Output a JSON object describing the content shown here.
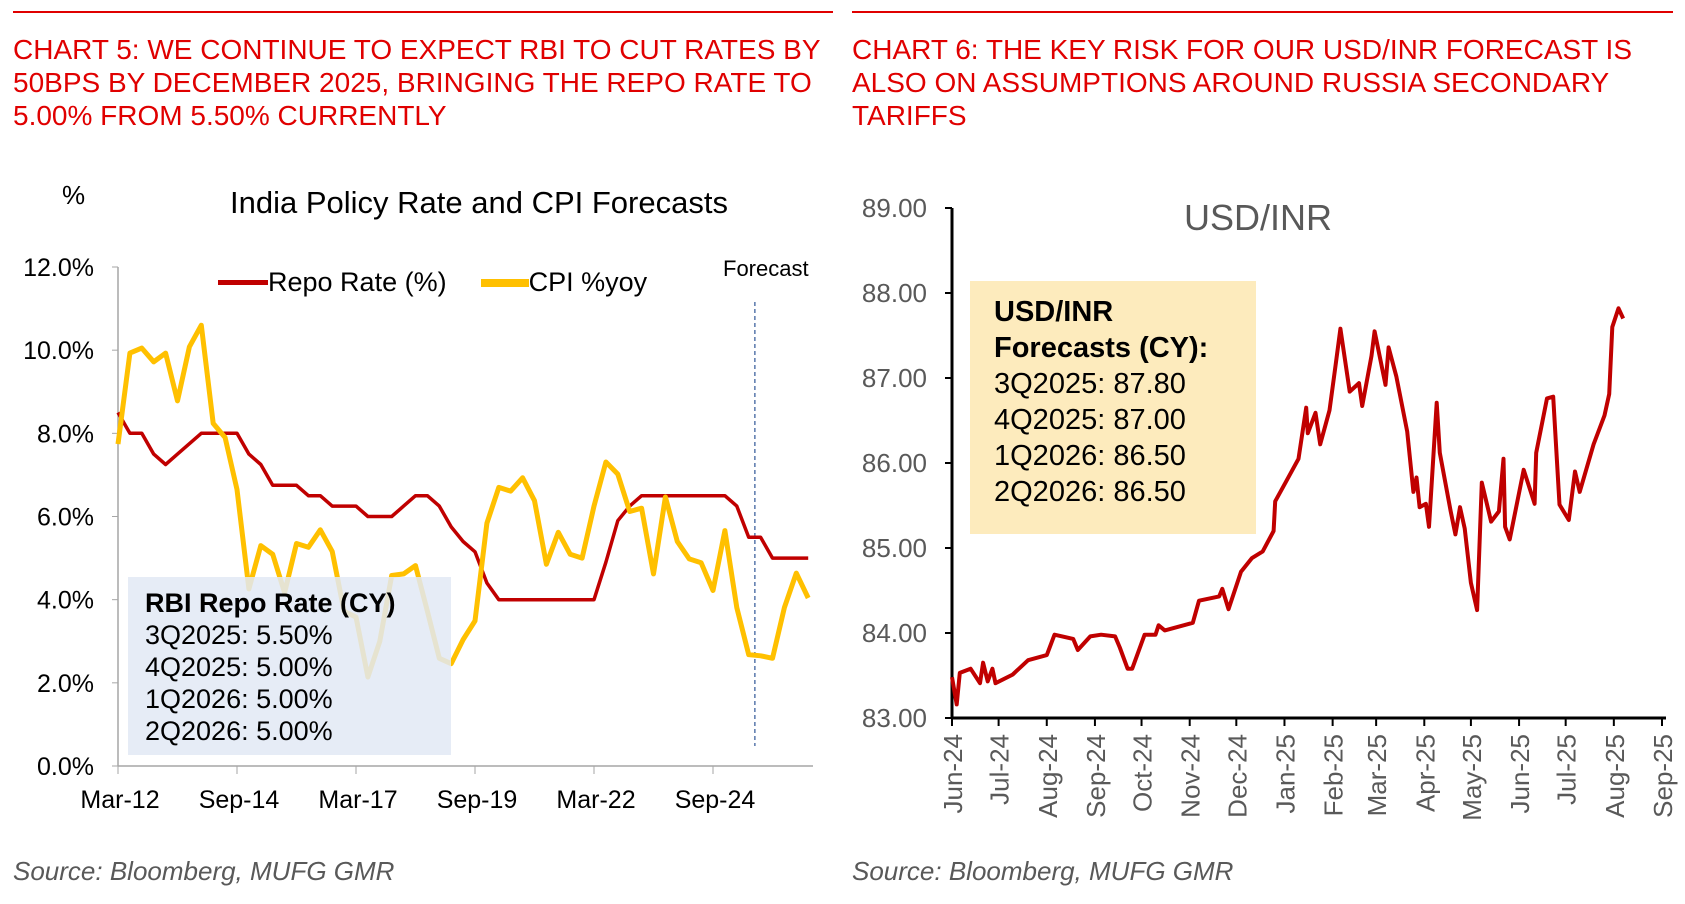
{
  "left": {
    "heading": "Chart 5: We continue to expect RBI to cut rates by 50bps by December 2025, bringing the repo rate to 5.00% from 5.50% currently",
    "source": "Source: Bloomberg, MUFG GMR",
    "annotation": {
      "title": "RBI Repo Rate (CY)",
      "lines": [
        "3Q2025: 5.50%",
        "4Q2025: 5.00%",
        "1Q2026: 5.00%",
        "2Q2026: 5.00%"
      ]
    }
  },
  "right": {
    "heading": "Chart 6: The key risk for our USD/INR forecast is also on assumptions around Russia secondary tariffs",
    "source": "Source: Bloomberg, MUFG GMR",
    "annotation": {
      "title1": "USD/INR",
      "title2": "Forecasts (CY):",
      "lines": [
        "3Q2025: 87.80",
        "4Q2025: 87.00",
        "1Q2026: 86.50",
        "2Q2026: 86.50"
      ]
    }
  },
  "chart_data": [
    {
      "type": "line",
      "title": "India Policy Rate and CPI Forecasts",
      "ylabel": "%",
      "ylim": [
        0,
        12
      ],
      "yticks": [
        "0.0%",
        "2.0%",
        "4.0%",
        "6.0%",
        "8.0%",
        "10.0%",
        "12.0%"
      ],
      "xticks": [
        "Mar-12",
        "Sep-14",
        "Mar-17",
        "Sep-19",
        "Mar-22",
        "Sep-24"
      ],
      "x_start": "2012-03",
      "x_frequency": "quarterly",
      "forecast_label": "Forecast",
      "legend_position": "top",
      "grid": false,
      "series": [
        {
          "name": "Repo Rate (%)",
          "color": "#c00000",
          "values": [
            8.5,
            8.0,
            8.0,
            7.5,
            7.25,
            7.5,
            7.75,
            8.0,
            8.0,
            8.0,
            8.0,
            7.5,
            7.25,
            6.75,
            6.75,
            6.75,
            6.5,
            6.5,
            6.25,
            6.25,
            6.25,
            6.0,
            6.0,
            6.0,
            6.25,
            6.5,
            6.5,
            6.25,
            5.75,
            5.4,
            5.15,
            4.4,
            4.0,
            4.0,
            4.0,
            4.0,
            4.0,
            4.0,
            4.0,
            4.0,
            4.0,
            4.9,
            5.9,
            6.25,
            6.5,
            6.5,
            6.5,
            6.5,
            6.5,
            6.5,
            6.5,
            6.5,
            6.25,
            5.5,
            5.5,
            5.0,
            5.0,
            5.0,
            5.0
          ]
        },
        {
          "name": "CPI %yoy",
          "color": "#ffc000",
          "values": [
            7.74,
            9.93,
            10.05,
            9.72,
            9.93,
            8.78,
            10.08,
            10.6,
            8.24,
            7.9,
            6.65,
            4.26,
            5.3,
            5.09,
            4.17,
            5.35,
            5.26,
            5.68,
            5.16,
            3.72,
            3.58,
            2.14,
            3.0,
            4.58,
            4.62,
            4.82,
            3.72,
            2.59,
            2.46,
            3.04,
            3.49,
            5.84,
            6.7,
            6.61,
            6.93,
            6.38,
            4.85,
            5.62,
            5.09,
            5.0,
            6.25,
            7.31,
            7.02,
            6.12,
            6.2,
            4.62,
            6.47,
            5.4,
            4.98,
            4.89,
            4.22,
            5.66,
            3.81,
            2.68,
            2.65,
            2.59,
            3.81,
            4.64,
            4.04
          ]
        }
      ]
    },
    {
      "type": "line",
      "title": "USD/INR",
      "ylim": [
        83,
        89
      ],
      "yticks": [
        "83.00",
        "84.00",
        "85.00",
        "86.00",
        "87.00",
        "88.00",
        "89.00"
      ],
      "xticks": [
        "Jun-24",
        "Jul-24",
        "Aug-24",
        "Sep-24",
        "Oct-24",
        "Nov-24",
        "Dec-24",
        "Jan-25",
        "Feb-25",
        "Mar-25",
        "Apr-25",
        "May-25",
        "Jun-25",
        "Jul-25",
        "Aug-25",
        "Sep-25"
      ],
      "xlim": [
        "2024-06-01",
        "2025-09-01"
      ],
      "grid": false,
      "series": [
        {
          "color": "#c00000",
          "x": [
            "2024-06-01",
            "2024-06-04",
            "2024-06-06",
            "2024-06-13",
            "2024-06-19",
            "2024-06-21",
            "2024-06-24",
            "2024-06-27",
            "2024-06-29",
            "2024-07-10",
            "2024-07-20",
            "2024-08-01",
            "2024-08-06",
            "2024-08-18",
            "2024-08-21",
            "2024-08-29",
            "2024-09-05",
            "2024-09-14",
            "2024-09-17",
            "2024-09-22",
            "2024-09-25",
            "2024-10-03",
            "2024-10-10",
            "2024-10-12",
            "2024-10-16",
            "2024-11-03",
            "2024-11-07",
            "2024-11-20",
            "2024-11-22",
            "2024-11-26",
            "2024-12-04",
            "2024-12-11",
            "2024-12-18",
            "2024-12-25",
            "2024-12-26",
            "2025-01-02",
            "2025-01-10",
            "2025-01-15",
            "2025-01-16",
            "2025-01-21",
            "2025-01-24",
            "2025-01-30",
            "2025-02-03",
            "2025-02-06",
            "2025-02-12",
            "2025-02-18",
            "2025-02-20",
            "2025-02-26",
            "2025-02-28",
            "2025-03-07",
            "2025-03-09",
            "2025-03-14",
            "2025-03-21",
            "2025-03-25",
            "2025-03-27",
            "2025-03-29",
            "2025-04-02",
            "2025-04-04",
            "2025-04-09",
            "2025-04-11",
            "2025-04-18",
            "2025-04-21",
            "2025-04-24",
            "2025-04-27",
            "2025-05-01",
            "2025-05-05",
            "2025-05-08",
            "2025-05-14",
            "2025-05-19",
            "2025-05-22",
            "2025-05-23",
            "2025-05-26",
            "2025-06-04",
            "2025-06-11",
            "2025-06-12",
            "2025-06-19",
            "2025-06-23",
            "2025-06-27",
            "2025-07-03",
            "2025-07-07",
            "2025-07-10",
            "2025-07-19",
            "2025-07-26",
            "2025-07-29",
            "2025-07-31",
            "2025-08-04",
            "2025-08-07"
          ],
          "values": [
            83.48,
            83.16,
            83.53,
            83.58,
            83.41,
            83.65,
            83.43,
            83.58,
            83.41,
            83.51,
            83.68,
            83.74,
            83.98,
            83.93,
            83.8,
            83.96,
            83.98,
            83.96,
            83.83,
            83.58,
            83.58,
            83.98,
            83.98,
            84.09,
            84.03,
            84.12,
            84.38,
            84.43,
            84.52,
            84.28,
            84.72,
            84.88,
            84.96,
            85.2,
            85.55,
            85.78,
            86.05,
            86.65,
            86.35,
            86.59,
            86.22,
            86.62,
            87.16,
            87.58,
            86.84,
            86.94,
            86.67,
            87.26,
            87.55,
            86.92,
            87.36,
            87.02,
            86.37,
            85.66,
            85.83,
            85.48,
            85.52,
            85.25,
            86.71,
            86.12,
            85.43,
            85.16,
            85.48,
            85.23,
            84.59,
            84.27,
            85.77,
            85.31,
            85.43,
            86.05,
            85.25,
            85.1,
            85.92,
            85.52,
            86.12,
            86.76,
            86.78,
            85.51,
            85.33,
            85.9,
            85.66,
            86.22,
            86.56,
            86.81,
            87.6,
            87.82,
            87.7
          ]
        }
      ]
    }
  ]
}
